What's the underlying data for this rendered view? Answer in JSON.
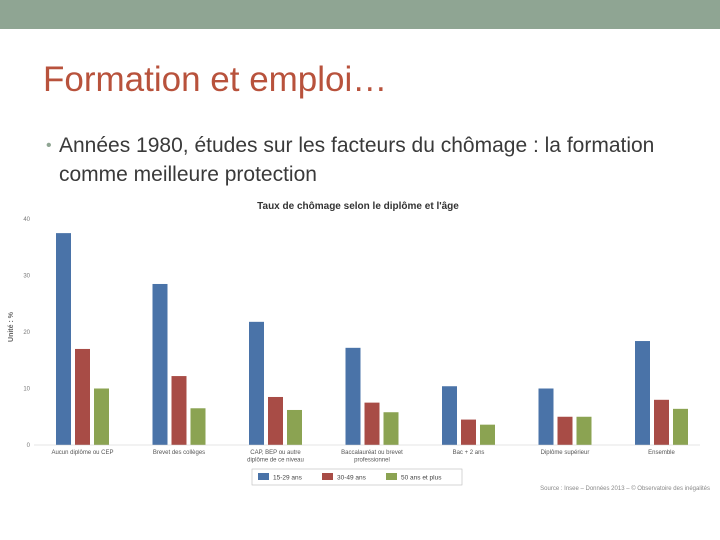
{
  "slide": {
    "title": "Formation et emploi…",
    "bullet_text": "Années 1980, études sur les facteurs du chômage : la formation comme meilleure protection"
  },
  "colors": {
    "top_bar": "#8fa593",
    "title": "#b8523c",
    "series_15_29": "#4a73a8",
    "series_30_49": "#a84c46",
    "series_50_plus": "#8ba352"
  },
  "chart_data": {
    "type": "bar",
    "title": "Taux de chômage selon le diplôme et l'âge",
    "ylabel": "Unité : %",
    "xlabel": "",
    "ylim": [
      0,
      40
    ],
    "yticks": [
      0,
      10,
      20,
      30,
      40
    ],
    "categories": [
      [
        "Aucun diplôme ou CEP"
      ],
      [
        "Brevet des collèges"
      ],
      [
        "CAP, BEP ou autre",
        "diplôme de ce niveau"
      ],
      [
        "Baccalauréat ou brevet",
        "professionnel"
      ],
      [
        "Bac + 2 ans"
      ],
      [
        "Diplôme supérieur"
      ],
      [
        "Ensemble"
      ]
    ],
    "series": [
      {
        "name": "15-29 ans",
        "color": "#4a73a8",
        "values": [
          37.5,
          28.5,
          21.8,
          17.2,
          10.4,
          10.0,
          18.4
        ]
      },
      {
        "name": "30-49 ans",
        "color": "#a84c46",
        "values": [
          17.0,
          12.2,
          8.5,
          7.5,
          4.5,
          5.0,
          8.0
        ]
      },
      {
        "name": "50 ans et plus",
        "color": "#8ba352",
        "values": [
          10.0,
          6.5,
          6.2,
          5.8,
          3.6,
          5.0,
          6.4
        ]
      }
    ],
    "legend_position": "bottom",
    "source": "Source : Insee – Données 2013 – © Observatoire des inégalités"
  }
}
